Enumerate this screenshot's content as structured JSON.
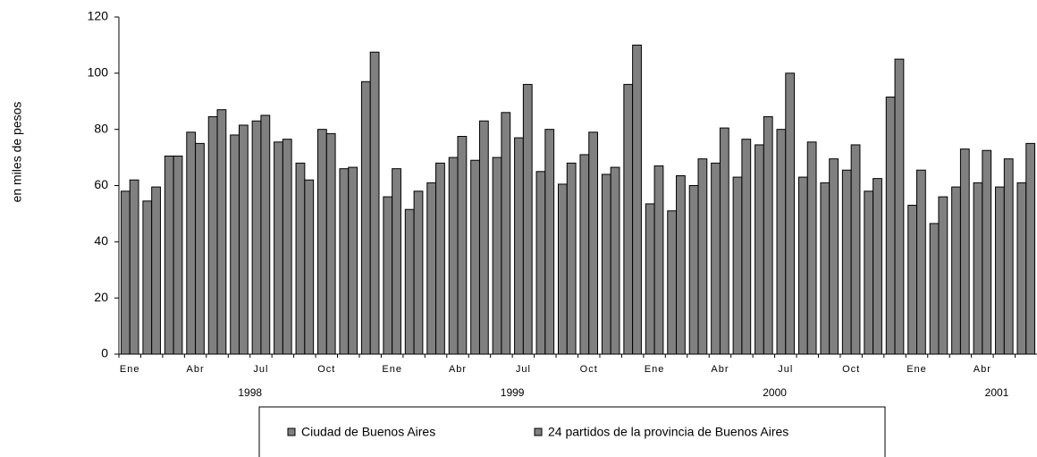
{
  "chart_data": {
    "type": "bar",
    "y_label": "en miles de pesos",
    "categories": [
      "Ene",
      null,
      null,
      "Abr",
      null,
      null,
      "Jul",
      null,
      null,
      "Oct",
      null,
      null,
      "Ene",
      null,
      null,
      "Abr",
      null,
      null,
      "Jul",
      null,
      null,
      "Oct",
      null,
      null,
      "Ene",
      null,
      null,
      "Abr",
      null,
      null,
      "Jul",
      null,
      null,
      "Oct",
      null,
      null,
      "Ene",
      null,
      null,
      "Abr",
      null,
      null
    ],
    "years": [
      "1998",
      "1999",
      "2000",
      "2001"
    ],
    "series": [
      {
        "name": "Ciudad de Buenos Aires",
        "color": "#808080",
        "values": [
          58,
          54.5,
          70.5,
          79,
          84.5,
          78,
          83,
          75.5,
          68,
          80,
          66,
          97,
          56,
          51.5,
          61,
          70,
          69,
          70,
          77,
          65,
          60.5,
          71,
          64,
          96,
          53.5,
          51,
          60,
          68,
          63,
          74.5,
          80,
          63,
          61,
          65.5,
          58,
          91.5,
          53,
          46.5,
          59.5,
          61,
          59.5,
          61
        ]
      },
      {
        "name": "24 partidos de la provincia de Buenos Aires",
        "color": "#808080",
        "values": [
          62,
          59.5,
          70.5,
          75,
          87,
          81.5,
          85,
          76.5,
          62,
          78.5,
          66.5,
          107.5,
          66,
          58,
          68,
          77.5,
          83,
          86,
          96,
          80,
          68,
          79,
          66.5,
          110,
          67,
          63.5,
          69.5,
          80.5,
          76.5,
          84.5,
          100,
          75.5,
          69.5,
          74.5,
          62.5,
          105,
          65.5,
          56,
          73,
          72.5,
          69.5,
          75
        ]
      }
    ],
    "ylim": [
      0,
      120
    ],
    "yticks": [
      0,
      20,
      40,
      60,
      80,
      100,
      120
    ],
    "grid": false
  }
}
